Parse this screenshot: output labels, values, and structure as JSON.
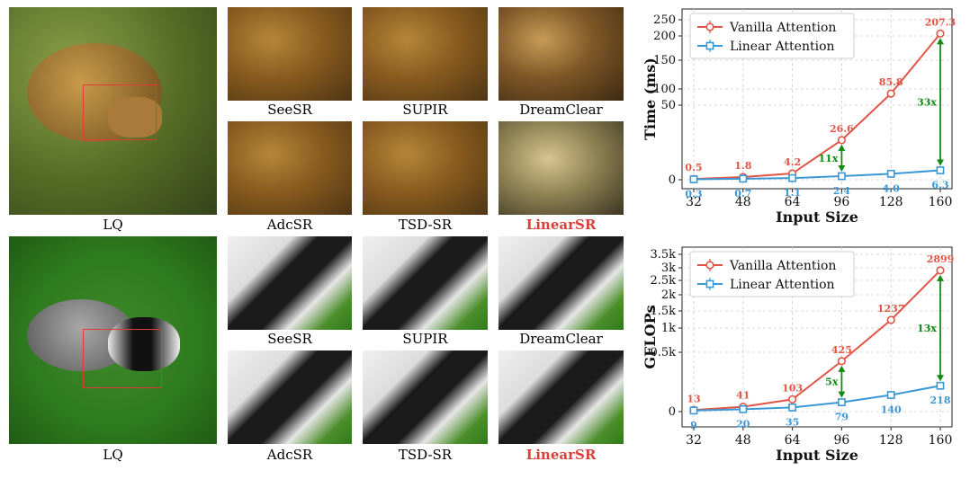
{
  "captions": {
    "lq": "LQ",
    "seesr": "SeeSR",
    "supir": "SUPIR",
    "dreamclear": "DreamClear",
    "adcsr": "AdcSR",
    "tsdsr": "TSD-SR",
    "linearsr": "LinearSR"
  },
  "colors": {
    "vanilla": "#e05545",
    "linear": "#3a98d6",
    "ratio_arrow": "#108a10",
    "zoom_box": "#e53935",
    "ours_caption": "#d9413a"
  },
  "chart_data": [
    {
      "type": "line",
      "xlabel": "Input Size",
      "ylabel": "Time (ms)",
      "categories": [
        "32",
        "48",
        "64",
        "96",
        "128",
        "160"
      ],
      "yticks": [
        "0",
        "50",
        "100",
        "150",
        "200",
        "250"
      ],
      "grid": true,
      "legend_position": "top-left",
      "series": [
        {
          "name": "Vanilla Attention",
          "values": [
            0.5,
            1.8,
            4.2,
            26.6,
            85.8,
            207.3
          ],
          "labels": [
            "0.5",
            "1.8",
            "4.2",
            "26.6",
            "85.8",
            "207.3"
          ]
        },
        {
          "name": "Linear Attention",
          "values": [
            0.3,
            0.7,
            1.1,
            2.4,
            4.0,
            6.3
          ],
          "labels": [
            "0.3",
            "0.7",
            "1.1",
            "2.4",
            "4.0",
            "6.3"
          ]
        }
      ],
      "ratio_annotations": [
        {
          "at": "96",
          "label": "11x"
        },
        {
          "at": "160",
          "label": "33x"
        }
      ]
    },
    {
      "type": "line",
      "xlabel": "Input Size",
      "ylabel": "GFLOPs",
      "categories": [
        "32",
        "48",
        "64",
        "96",
        "128",
        "160"
      ],
      "yticks": [
        "0",
        "0.5k",
        "1k",
        "1.5k",
        "2k",
        "2.5k",
        "3k",
        "3.5k"
      ],
      "grid": true,
      "legend_position": "top-left",
      "series": [
        {
          "name": "Vanilla Attention",
          "values": [
            13,
            41,
            103,
            425,
            1237,
            2899
          ],
          "labels": [
            "13",
            "41",
            "103",
            "425",
            "1237",
            "2899"
          ]
        },
        {
          "name": "Linear Attention",
          "values": [
            9,
            20,
            35,
            79,
            140,
            218
          ],
          "labels": [
            "9",
            "20",
            "35",
            "79",
            "140",
            "218"
          ]
        }
      ],
      "ratio_annotations": [
        {
          "at": "96",
          "label": "5x"
        },
        {
          "at": "160",
          "label": "13x"
        }
      ]
    }
  ]
}
